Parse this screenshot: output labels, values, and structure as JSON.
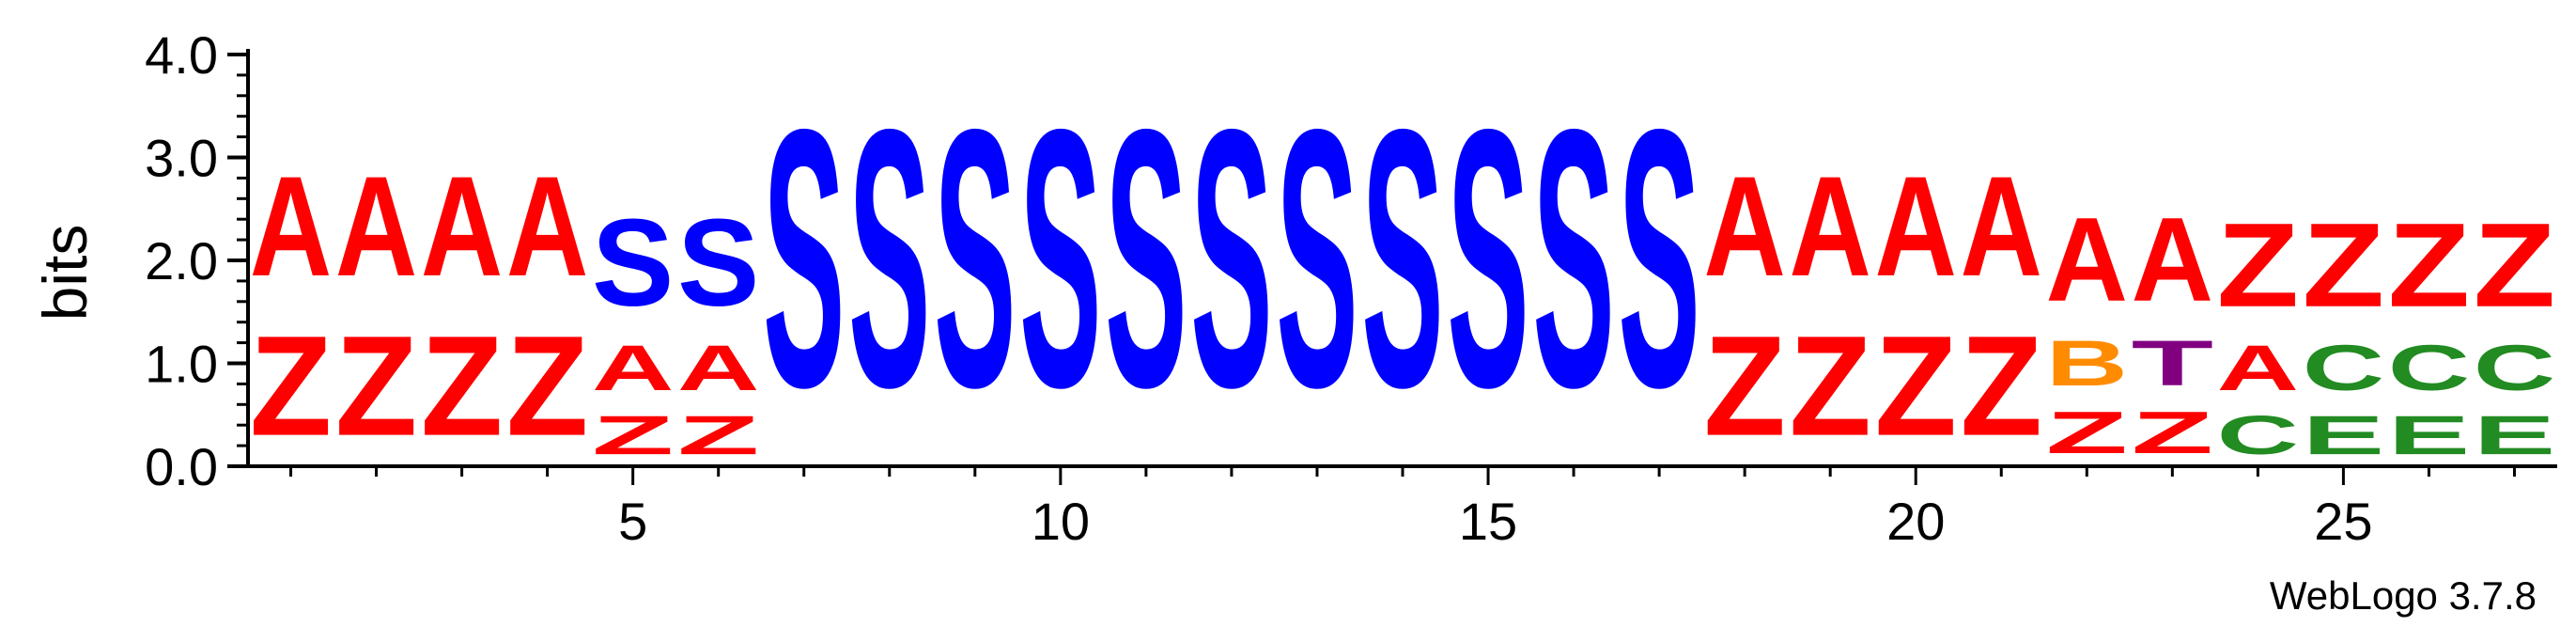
{
  "chart_data": {
    "type": "sequence-logo",
    "ylabel": "bits",
    "ylim": [
      0,
      4.0
    ],
    "yticks": [
      "0.0",
      "1.0",
      "2.0",
      "3.0",
      "4.0"
    ],
    "xticks": [
      "5",
      "10",
      "15",
      "20",
      "25"
    ],
    "positions": [
      1,
      2,
      3,
      4,
      5,
      6,
      7,
      8,
      9,
      10,
      11,
      12,
      13,
      14,
      15,
      16,
      17,
      18,
      19,
      20,
      21,
      22,
      23,
      24,
      25,
      26,
      27
    ],
    "colors": {
      "A": "#ff0000",
      "Z": "#ff0000",
      "S": "#0000ff",
      "B": "#ff8c00",
      "T": "#800080",
      "C": "#228b22",
      "E": "#228b22"
    },
    "stacks": [
      [
        {
          "letter": "Z",
          "bits": 1.55
        },
        {
          "letter": "A",
          "bits": 1.55
        }
      ],
      [
        {
          "letter": "Z",
          "bits": 1.55
        },
        {
          "letter": "A",
          "bits": 1.55
        }
      ],
      [
        {
          "letter": "Z",
          "bits": 1.55
        },
        {
          "letter": "A",
          "bits": 1.55
        }
      ],
      [
        {
          "letter": "Z",
          "bits": 1.55
        },
        {
          "letter": "A",
          "bits": 1.55
        }
      ],
      [
        {
          "letter": "Z",
          "bits": 0.6
        },
        {
          "letter": "A",
          "bits": 0.7
        },
        {
          "letter": "S",
          "bits": 1.35
        }
      ],
      [
        {
          "letter": "Z",
          "bits": 0.6
        },
        {
          "letter": "A",
          "bits": 0.7
        },
        {
          "letter": "S",
          "bits": 1.35
        }
      ],
      [
        {
          "letter": "S",
          "bits": 4.0
        }
      ],
      [
        {
          "letter": "S",
          "bits": 4.0
        }
      ],
      [
        {
          "letter": "S",
          "bits": 4.0
        }
      ],
      [
        {
          "letter": "S",
          "bits": 4.0
        }
      ],
      [
        {
          "letter": "S",
          "bits": 4.0
        }
      ],
      [
        {
          "letter": "S",
          "bits": 4.0
        }
      ],
      [
        {
          "letter": "S",
          "bits": 4.0
        }
      ],
      [
        {
          "letter": "S",
          "bits": 4.0
        }
      ],
      [
        {
          "letter": "S",
          "bits": 4.0
        }
      ],
      [
        {
          "letter": "S",
          "bits": 4.0
        }
      ],
      [
        {
          "letter": "S",
          "bits": 4.0
        }
      ],
      [
        {
          "letter": "Z",
          "bits": 1.55
        },
        {
          "letter": "A",
          "bits": 1.55
        }
      ],
      [
        {
          "letter": "Z",
          "bits": 1.55
        },
        {
          "letter": "A",
          "bits": 1.55
        }
      ],
      [
        {
          "letter": "Z",
          "bits": 1.55
        },
        {
          "letter": "A",
          "bits": 1.55
        }
      ],
      [
        {
          "letter": "Z",
          "bits": 1.55
        },
        {
          "letter": "A",
          "bits": 1.55
        }
      ],
      [
        {
          "letter": "Z",
          "bits": 0.65
        },
        {
          "letter": "B",
          "bits": 0.7
        },
        {
          "letter": "A",
          "bits": 1.3
        }
      ],
      [
        {
          "letter": "Z",
          "bits": 0.65
        },
        {
          "letter": "T",
          "bits": 0.7
        },
        {
          "letter": "A",
          "bits": 1.3
        }
      ],
      [
        {
          "letter": "C",
          "bits": 0.6
        },
        {
          "letter": "A",
          "bits": 0.7
        },
        {
          "letter": "Z",
          "bits": 1.3
        }
      ],
      [
        {
          "letter": "E",
          "bits": 0.6
        },
        {
          "letter": "C",
          "bits": 0.7
        },
        {
          "letter": "Z",
          "bits": 1.3
        }
      ],
      [
        {
          "letter": "E",
          "bits": 0.6
        },
        {
          "letter": "C",
          "bits": 0.7
        },
        {
          "letter": "Z",
          "bits": 1.3
        }
      ],
      [
        {
          "letter": "E",
          "bits": 0.6
        },
        {
          "letter": "C",
          "bits": 0.7
        },
        {
          "letter": "Z",
          "bits": 1.3
        }
      ]
    ],
    "footer": "WebLogo 3.7.8"
  }
}
